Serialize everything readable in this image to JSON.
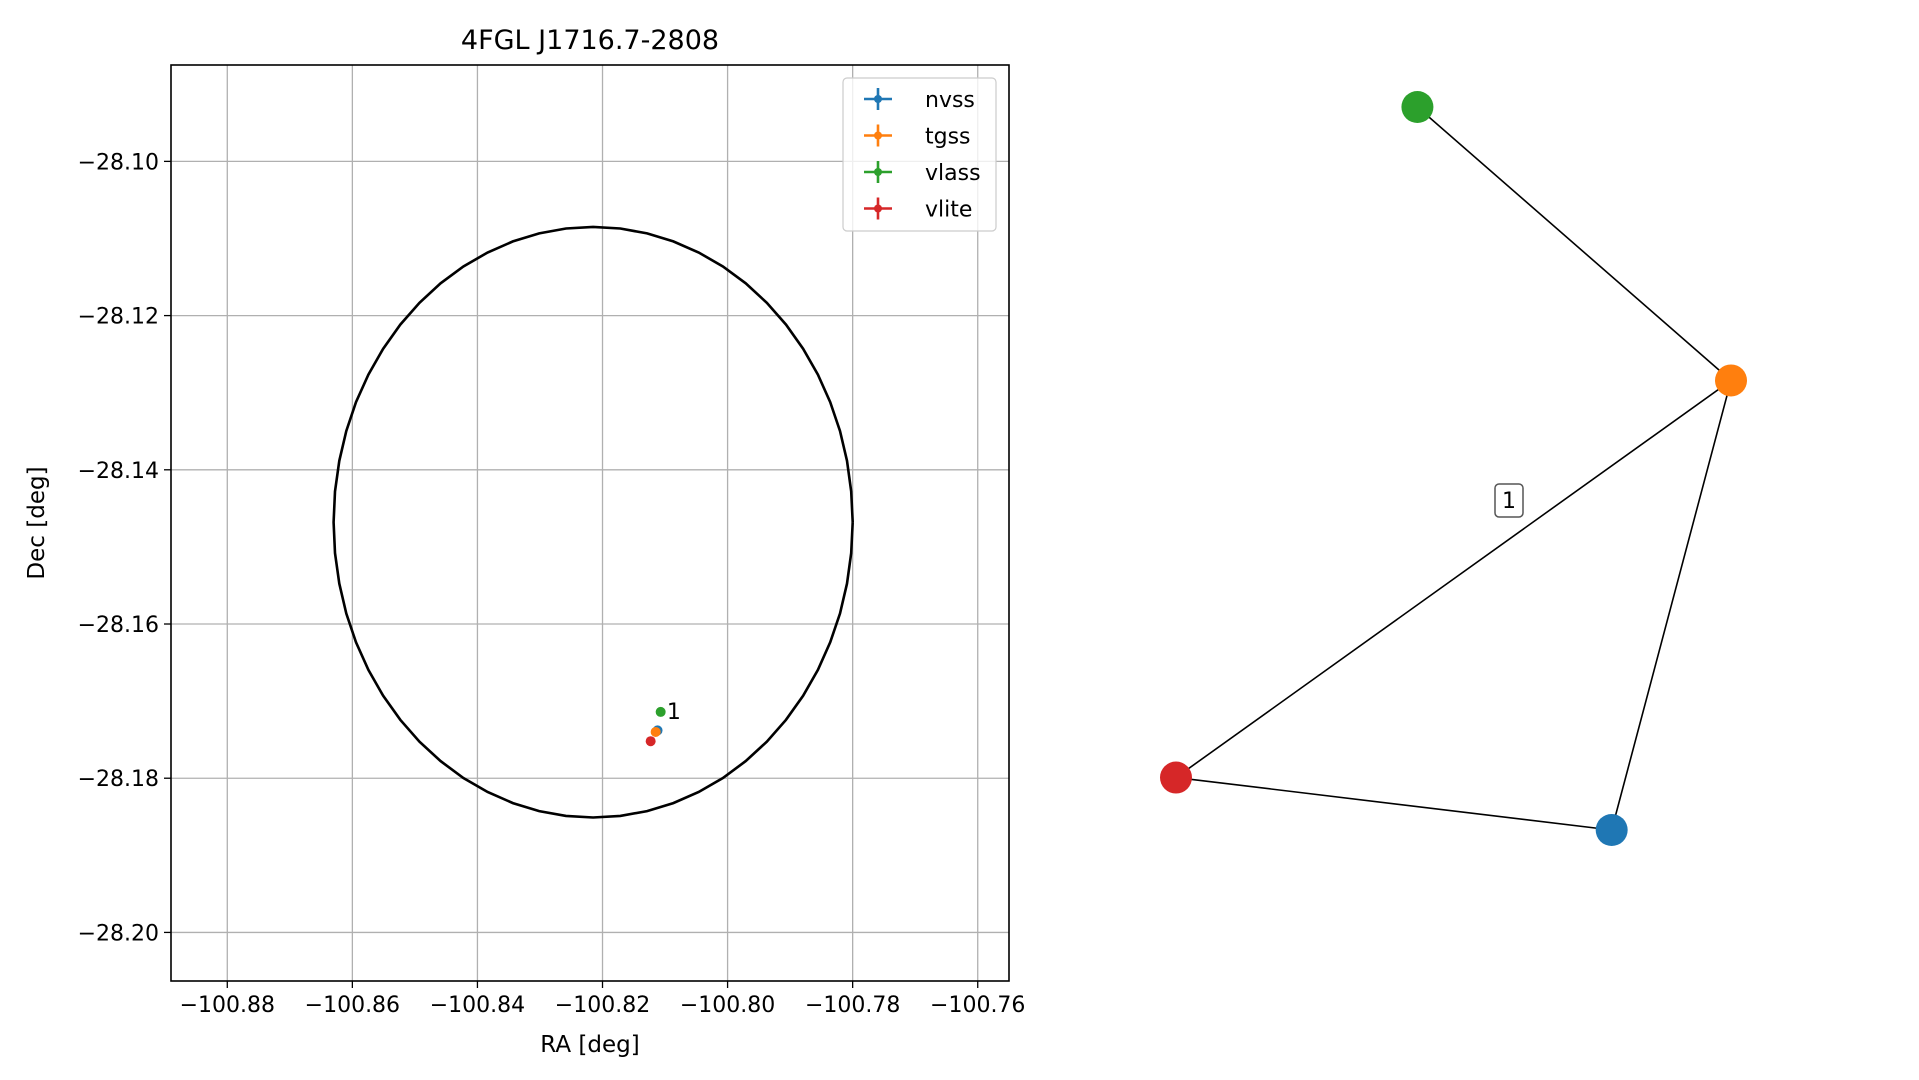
{
  "chart_data": [
    {
      "type": "scatter",
      "title": "4FGL J1716.7-2808",
      "xlabel": "RA [deg]",
      "ylabel": "Dec [deg]",
      "xlim": [
        -100.889,
        -100.755
      ],
      "ylim": [
        -28.2063,
        -28.0875
      ],
      "x_ticks": [
        -100.88,
        -100.86,
        -100.84,
        -100.82,
        -100.8,
        -100.78,
        -100.76
      ],
      "x_tick_labels": [
        "−100.88",
        "−100.86",
        "−100.84",
        "−100.82",
        "−100.80",
        "−100.78",
        "−100.76"
      ],
      "y_ticks": [
        -28.1,
        -28.12,
        -28.14,
        -28.16,
        -28.18,
        -28.2
      ],
      "y_tick_labels": [
        "−28.10",
        "−28.12",
        "−28.14",
        "−28.16",
        "−28.18",
        "−28.20"
      ],
      "grid": true,
      "legend_position": "top-right",
      "series": [
        {
          "name": "nvss",
          "color": "#1f77b4",
          "points": [
            [
              -100.8112,
              -28.1738
            ]
          ]
        },
        {
          "name": "tgss",
          "color": "#ff7f0e",
          "points": [
            [
              -100.8115,
              -28.174
            ]
          ]
        },
        {
          "name": "vlass",
          "color": "#2ca02c",
          "points": [
            [
              -100.8107,
              -28.1714
            ]
          ]
        },
        {
          "name": "vlite",
          "color": "#d62728",
          "points": [
            [
              -100.8123,
              -28.1752
            ]
          ]
        }
      ],
      "annotations": [
        {
          "text": "1",
          "x": -100.8097,
          "y": -28.1713
        }
      ],
      "ellipse": {
        "center": [
          -100.8215,
          -28.1468
        ],
        "ra_semi_axis": 0.0415,
        "dec_semi_axis": 0.0383,
        "color": "#000000"
      }
    },
    {
      "type": "network",
      "nodes": [
        {
          "id": "vlass",
          "color": "#2ca02c",
          "x": 0.435,
          "y": 0.945
        },
        {
          "id": "tgss",
          "color": "#ff7f0e",
          "x": 1.0,
          "y": 0.58
        },
        {
          "id": "vlite",
          "color": "#d62728",
          "x": 0.0,
          "y": 0.05
        },
        {
          "id": "nvss",
          "color": "#1f77b4",
          "x": 0.785,
          "y": -0.02
        }
      ],
      "edges": [
        {
          "source": "vlass",
          "target": "tgss",
          "label": ""
        },
        {
          "source": "tgss",
          "target": "vlite",
          "label": "1"
        },
        {
          "source": "tgss",
          "target": "nvss",
          "label": ""
        },
        {
          "source": "vlite",
          "target": "nvss",
          "label": ""
        }
      ]
    }
  ]
}
